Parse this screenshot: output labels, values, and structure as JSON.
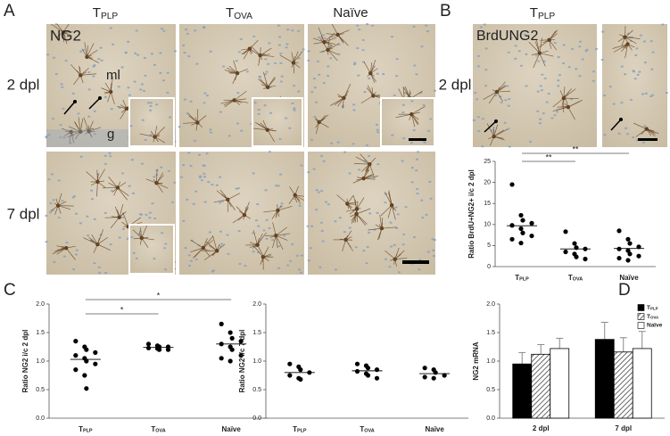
{
  "panel_labels": [
    "A",
    "B",
    "C",
    "D"
  ],
  "panel_a": {
    "columns": [
      "TPLP",
      "TOVA",
      "Naïve"
    ],
    "rows": [
      "2 dpl",
      "7 dpl"
    ],
    "stain": "NG2",
    "layers": [
      "ml",
      "g"
    ]
  },
  "panel_b": {
    "column": "TPLP",
    "row": "2 dpl",
    "stain": "BrdUNG2"
  },
  "chart_data": [
    {
      "type": "strip",
      "y_label": "Ratio BrdU+NG2+ i/c 2 dpl",
      "categories": [
        "TPLP",
        "TOVA",
        "Naïve"
      ],
      "values": [
        [
          19.5,
          12.2,
          11.0,
          10.3,
          9.8,
          9.0,
          8.0,
          7.3,
          6.5,
          5.6
        ],
        [
          8.3,
          5.5,
          4.5,
          4.2,
          3.5,
          3.0,
          2.3,
          1.8
        ],
        [
          8.5,
          6.5,
          5.5,
          4.7,
          4.2,
          3.8,
          3.0,
          2.5,
          2.0,
          1.5
        ]
      ],
      "means": [
        9.7,
        4.2,
        4.3
      ],
      "color": "#000000",
      "ylim": [
        0,
        25
      ],
      "yticks": [
        0,
        5,
        10,
        15,
        20,
        25
      ],
      "comparisons": [
        {
          "label": "**",
          "between": [
            "TPLP",
            "TOVA"
          ]
        },
        {
          "label": "**",
          "between": [
            "TPLP",
            "Naïve"
          ]
        }
      ]
    },
    {
      "type": "strip",
      "y_label": "Ratio NG2 i/c 2 dpl",
      "categories": [
        "TPLP",
        "TOVA",
        "Naïve"
      ],
      "values": [
        [
          1.35,
          1.25,
          1.2,
          1.15,
          1.1,
          1.05,
          1.0,
          0.95,
          0.85,
          0.75,
          0.52
        ],
        [
          1.3,
          1.27,
          1.25,
          1.25,
          1.23,
          1.22,
          1.2,
          1.2
        ],
        [
          1.65,
          1.5,
          1.4,
          1.35,
          1.3,
          1.25,
          1.2,
          1.1,
          1.05,
          1.0
        ]
      ],
      "means": [
        1.03,
        1.24,
        1.3
      ],
      "color": "#000000",
      "ylim": [
        0,
        2
      ],
      "yticks": [
        {
          "value": 0,
          "label": "0.0"
        },
        {
          "value": 0.5,
          "label": "0.5"
        },
        {
          "value": 1,
          "label": "1.0"
        },
        {
          "value": 1.5,
          "label": "1.5"
        },
        {
          "value": 2,
          "label": "2.0"
        }
      ],
      "comparisons": [
        {
          "label": "*",
          "between": [
            "TPLP",
            "TOVA"
          ]
        },
        {
          "label": "*",
          "between": [
            "TPLP",
            "Naïve"
          ]
        }
      ]
    },
    {
      "type": "strip",
      "y_label": "Ratio NG2 i/c 7 dpl",
      "categories": [
        "TPLP",
        "TOVA",
        "Naïve"
      ],
      "values": [
        [
          0.95,
          0.9,
          0.85,
          0.8,
          0.75,
          0.7,
          0.68
        ],
        [
          0.95,
          0.92,
          0.88,
          0.85,
          0.82,
          0.78,
          0.75,
          0.7
        ],
        [
          0.88,
          0.85,
          0.8,
          0.75,
          0.72,
          0.7
        ]
      ],
      "means": [
        0.8,
        0.83,
        0.78
      ],
      "color": "#000000",
      "ylim": [
        0,
        2
      ],
      "yticks": [
        {
          "value": 0,
          "label": "0.0"
        },
        {
          "value": 0.5,
          "label": "0.5"
        },
        {
          "value": 1,
          "label": "1.0"
        },
        {
          "value": 1.5,
          "label": "1.5"
        },
        {
          "value": 2,
          "label": "2.0"
        }
      ]
    },
    {
      "type": "bar",
      "y_label": "NG2 mRNA",
      "categories": [
        "2 dpl",
        "7 dpl"
      ],
      "series": [
        {
          "name": "TPLP",
          "color": "#000000",
          "values": [
            0.95,
            1.38
          ],
          "errors": [
            0.2,
            0.3
          ]
        },
        {
          "name": "TOVA",
          "color": "#9a9a9a",
          "hatch": true,
          "values": [
            1.12,
            1.16
          ],
          "errors": [
            0.17,
            0.25
          ]
        },
        {
          "name": "Naïve",
          "color": "#ffffff",
          "values": [
            1.22,
            1.22
          ],
          "errors": [
            0.18,
            0.3
          ]
        }
      ],
      "ylim": [
        0,
        2
      ],
      "yticks": [
        {
          "value": 0,
          "label": "0.0"
        },
        {
          "value": 0.5,
          "label": "0.5"
        },
        {
          "value": 1,
          "label": "1.0"
        },
        {
          "value": 1.5,
          "label": "1.5"
        },
        {
          "value": 2,
          "label": "2.0"
        }
      ],
      "legend": "top-right"
    }
  ]
}
